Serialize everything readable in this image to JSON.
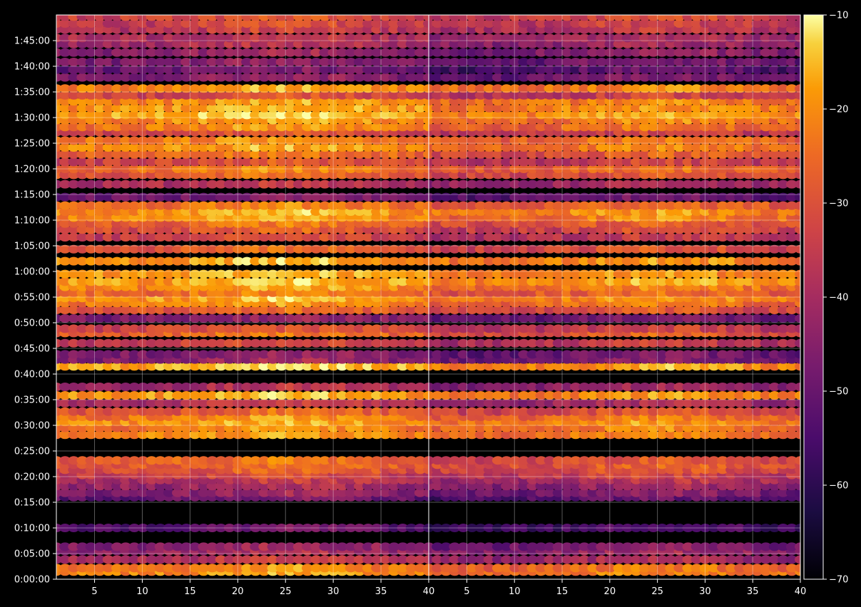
{
  "chart_data": {
    "type": "heatmap",
    "title": "",
    "colormap": "inferno",
    "background": "#000000",
    "grid": true,
    "panels": [
      {
        "name": "left",
        "x_range": [
          1,
          40
        ],
        "x_ticks": [
          5,
          10,
          15,
          20,
          25,
          30,
          35,
          40
        ],
        "x_tick_labels": [
          "5",
          "10",
          "15",
          "20",
          "25",
          "30",
          "35",
          "40"
        ]
      },
      {
        "name": "right",
        "x_range": [
          1,
          40
        ],
        "x_ticks": [
          5,
          10,
          15,
          20,
          25,
          30,
          35,
          40
        ],
        "x_tick_labels": [
          "5",
          "10",
          "15",
          "20",
          "25",
          "30",
          "35",
          "40"
        ]
      }
    ],
    "y_range_seconds": [
      0,
      6600
    ],
    "y_tick_labels": [
      "0:00:00",
      "0:05:00",
      "0:10:00",
      "0:15:00",
      "0:20:00",
      "0:25:00",
      "0:30:00",
      "0:35:00",
      "0:40:00",
      "0:45:00",
      "0:50:00",
      "0:55:00",
      "1:00:00",
      "1:05:00",
      "1:10:00",
      "1:15:00",
      "1:20:00",
      "1:25:00",
      "1:30:00",
      "1:35:00",
      "1:40:00",
      "1:45:00"
    ],
    "colorbar": {
      "range": [
        -70,
        -10
      ],
      "ticks": [
        -10,
        -20,
        -30,
        -40,
        -50,
        -60,
        -70
      ],
      "tick_labels": [
        "−10",
        "−20",
        "−30",
        "−40",
        "−50",
        "−60",
        "−70"
      ]
    },
    "bands_left": [
      {
        "t": 90,
        "v": -22
      },
      {
        "t": 130,
        "v": -24
      },
      {
        "t": 230,
        "v": -40
      },
      {
        "t": 330,
        "v": -44
      },
      {
        "t": 380,
        "v": -46
      },
      {
        "t": 600,
        "v": -54
      },
      {
        "t": 960,
        "v": -52
      },
      {
        "t": 1010,
        "v": -47
      },
      {
        "t": 1090,
        "v": -44
      },
      {
        "t": 1160,
        "v": -40
      },
      {
        "t": 1220,
        "v": -36
      },
      {
        "t": 1280,
        "v": -32
      },
      {
        "t": 1340,
        "v": -29
      },
      {
        "t": 1390,
        "v": -28
      },
      {
        "t": 1690,
        "v": -22
      },
      {
        "t": 1770,
        "v": -24
      },
      {
        "t": 1840,
        "v": -21
      },
      {
        "t": 1900,
        "v": -24
      },
      {
        "t": 1960,
        "v": -30
      },
      {
        "t": 2060,
        "v": -40
      },
      {
        "t": 2150,
        "v": -20
      },
      {
        "t": 2250,
        "v": -42
      },
      {
        "t": 2490,
        "v": -18
      },
      {
        "t": 2570,
        "v": -46
      },
      {
        "t": 2630,
        "v": -48
      },
      {
        "t": 2760,
        "v": -36
      },
      {
        "t": 2880,
        "v": -28
      },
      {
        "t": 2930,
        "v": -34
      },
      {
        "t": 3050,
        "v": -48
      },
      {
        "t": 3150,
        "v": -30
      },
      {
        "t": 3230,
        "v": -24
      },
      {
        "t": 3290,
        "v": -20
      },
      {
        "t": 3350,
        "v": -26
      },
      {
        "t": 3420,
        "v": -22
      },
      {
        "t": 3480,
        "v": -19
      },
      {
        "t": 3570,
        "v": -20
      },
      {
        "t": 3720,
        "v": -20
      },
      {
        "t": 3860,
        "v": -30
      },
      {
        "t": 4000,
        "v": -36
      },
      {
        "t": 4090,
        "v": -32
      },
      {
        "t": 4160,
        "v": -28
      },
      {
        "t": 4230,
        "v": -22
      },
      {
        "t": 4300,
        "v": -20
      },
      {
        "t": 4370,
        "v": -26
      },
      {
        "t": 4470,
        "v": -50
      },
      {
        "t": 4620,
        "v": -40
      },
      {
        "t": 4730,
        "v": -30
      },
      {
        "t": 4800,
        "v": -26
      },
      {
        "t": 4880,
        "v": -34
      },
      {
        "t": 4970,
        "v": -28
      },
      {
        "t": 5050,
        "v": -22
      },
      {
        "t": 5130,
        "v": -24
      },
      {
        "t": 5230,
        "v": -34
      },
      {
        "t": 5290,
        "v": -24
      },
      {
        "t": 5370,
        "v": -22
      },
      {
        "t": 5430,
        "v": -18
      },
      {
        "t": 5510,
        "v": -20
      },
      {
        "t": 5590,
        "v": -22
      },
      {
        "t": 5660,
        "v": -34
      },
      {
        "t": 5740,
        "v": -22
      },
      {
        "t": 5870,
        "v": -48
      },
      {
        "t": 5960,
        "v": -52
      },
      {
        "t": 6050,
        "v": -48
      },
      {
        "t": 6160,
        "v": -46
      },
      {
        "t": 6260,
        "v": -42
      },
      {
        "t": 6330,
        "v": -40
      },
      {
        "t": 6430,
        "v": -38
      },
      {
        "t": 6500,
        "v": -36
      },
      {
        "t": 6580,
        "v": -34
      }
    ],
    "bands_right": [
      {
        "t": 90,
        "v": -26
      },
      {
        "t": 130,
        "v": -28
      },
      {
        "t": 230,
        "v": -44
      },
      {
        "t": 330,
        "v": -46
      },
      {
        "t": 380,
        "v": -50
      },
      {
        "t": 600,
        "v": -58
      },
      {
        "t": 960,
        "v": -56
      },
      {
        "t": 1010,
        "v": -50
      },
      {
        "t": 1090,
        "v": -46
      },
      {
        "t": 1160,
        "v": -42
      },
      {
        "t": 1220,
        "v": -38
      },
      {
        "t": 1280,
        "v": -34
      },
      {
        "t": 1340,
        "v": -32
      },
      {
        "t": 1390,
        "v": -34
      },
      {
        "t": 1690,
        "v": -26
      },
      {
        "t": 1770,
        "v": -26
      },
      {
        "t": 1840,
        "v": -24
      },
      {
        "t": 1900,
        "v": -28
      },
      {
        "t": 1960,
        "v": -34
      },
      {
        "t": 2060,
        "v": -44
      },
      {
        "t": 2150,
        "v": -24
      },
      {
        "t": 2250,
        "v": -46
      },
      {
        "t": 2490,
        "v": -22
      },
      {
        "t": 2570,
        "v": -50
      },
      {
        "t": 2630,
        "v": -52
      },
      {
        "t": 2760,
        "v": -40
      },
      {
        "t": 2880,
        "v": -32
      },
      {
        "t": 2930,
        "v": -38
      },
      {
        "t": 3050,
        "v": -52
      },
      {
        "t": 3150,
        "v": -34
      },
      {
        "t": 3230,
        "v": -28
      },
      {
        "t": 3290,
        "v": -24
      },
      {
        "t": 3350,
        "v": -30
      },
      {
        "t": 3420,
        "v": -26
      },
      {
        "t": 3480,
        "v": -22
      },
      {
        "t": 3570,
        "v": -24
      },
      {
        "t": 3720,
        "v": -24
      },
      {
        "t": 3860,
        "v": -34
      },
      {
        "t": 4000,
        "v": -40
      },
      {
        "t": 4090,
        "v": -36
      },
      {
        "t": 4160,
        "v": -32
      },
      {
        "t": 4230,
        "v": -26
      },
      {
        "t": 4300,
        "v": -24
      },
      {
        "t": 4370,
        "v": -30
      },
      {
        "t": 4470,
        "v": -54
      },
      {
        "t": 4620,
        "v": -44
      },
      {
        "t": 4730,
        "v": -34
      },
      {
        "t": 4800,
        "v": -30
      },
      {
        "t": 4880,
        "v": -38
      },
      {
        "t": 4970,
        "v": -32
      },
      {
        "t": 5050,
        "v": -26
      },
      {
        "t": 5130,
        "v": -28
      },
      {
        "t": 5230,
        "v": -38
      },
      {
        "t": 5290,
        "v": -28
      },
      {
        "t": 5370,
        "v": -26
      },
      {
        "t": 5430,
        "v": -22
      },
      {
        "t": 5510,
        "v": -24
      },
      {
        "t": 5590,
        "v": -26
      },
      {
        "t": 5660,
        "v": -38
      },
      {
        "t": 5740,
        "v": -26
      },
      {
        "t": 5870,
        "v": -52
      },
      {
        "t": 5960,
        "v": -56
      },
      {
        "t": 6050,
        "v": -52
      },
      {
        "t": 6160,
        "v": -48
      },
      {
        "t": 6260,
        "v": -46
      },
      {
        "t": 6330,
        "v": -44
      },
      {
        "t": 6430,
        "v": -40
      },
      {
        "t": 6500,
        "v": -38
      },
      {
        "t": 6580,
        "v": -36
      }
    ]
  }
}
